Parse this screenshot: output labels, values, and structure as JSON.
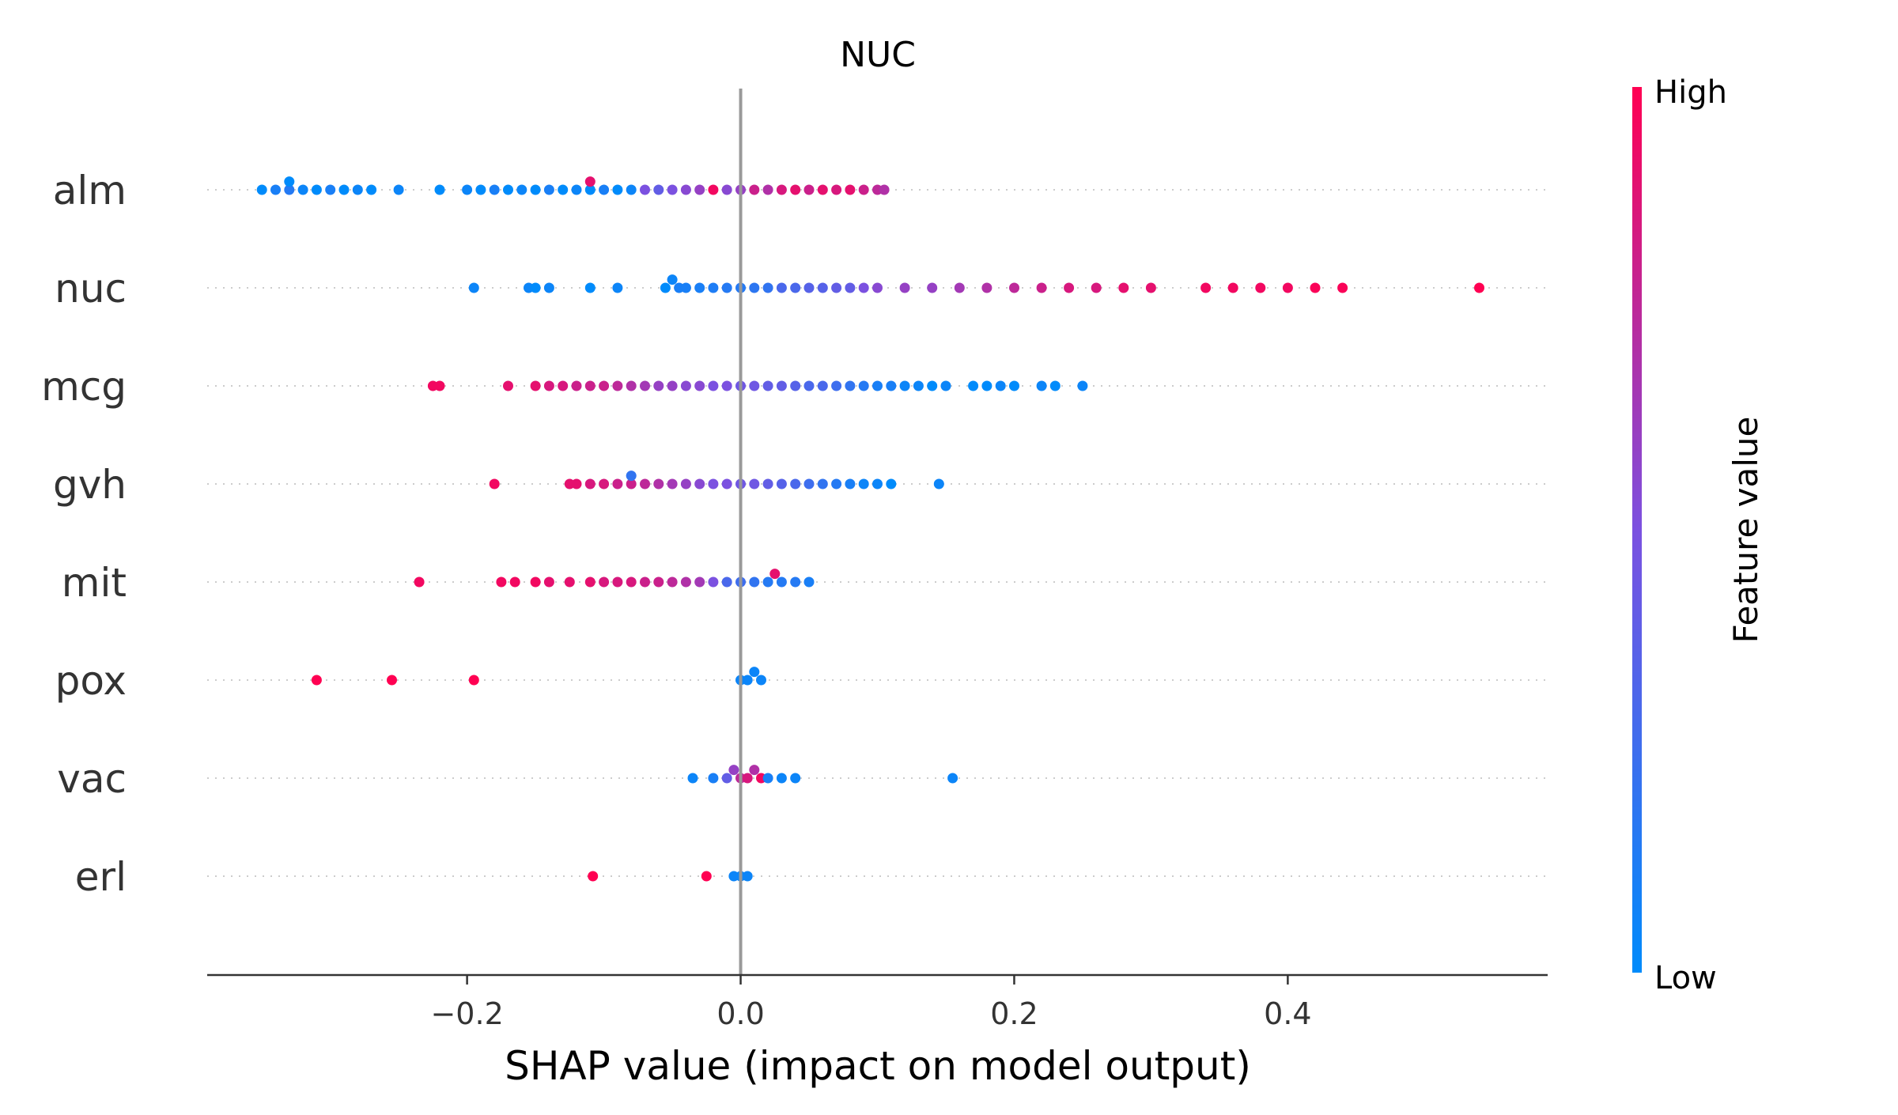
{
  "chart_data": {
    "type": "scatter",
    "subtype": "shap-beeswarm",
    "title": "NUC",
    "xlabel": "SHAP value (impact on model output)",
    "xlim": [
      -0.39,
      0.59
    ],
    "xticks": [
      -0.2,
      0.0,
      0.2,
      0.4
    ],
    "xtick_labels": [
      "−0.2",
      "0.0",
      "0.2",
      "0.4"
    ],
    "colorbar": {
      "title": "Feature value",
      "high_label": "High",
      "low_label": "Low",
      "low_color": "#008bfb",
      "high_color": "#ff0052"
    },
    "zero_line_color": "#999999",
    "grid": "dotted-horizontal",
    "features": [
      {
        "name": "alm",
        "summary": "wide tail of low values (blue) to -0.35; dense cluster of high values (red) at 0.03 to 0.11",
        "points": [
          [
            -0.35,
            0.0
          ],
          [
            -0.34,
            0.1
          ],
          [
            -0.33,
            0.15
          ],
          [
            -0.33,
            0.0
          ],
          [
            -0.32,
            0.05
          ],
          [
            -0.31,
            0.0
          ],
          [
            -0.3,
            0.1
          ],
          [
            -0.29,
            0.0
          ],
          [
            -0.28,
            0.05
          ],
          [
            -0.27,
            0.0
          ],
          [
            -0.25,
            0.05
          ],
          [
            -0.22,
            0.0
          ],
          [
            -0.2,
            0.05
          ],
          [
            -0.19,
            0.0
          ],
          [
            -0.18,
            0.1
          ],
          [
            -0.17,
            0.0
          ],
          [
            -0.16,
            0.05
          ],
          [
            -0.15,
            0.0
          ],
          [
            -0.14,
            0.1
          ],
          [
            -0.13,
            0.0
          ],
          [
            -0.12,
            0.05
          ],
          [
            -0.11,
            0.0
          ],
          [
            -0.1,
            0.1
          ],
          [
            -0.09,
            0.0
          ],
          [
            -0.08,
            0.05
          ],
          [
            -0.07,
            0.5
          ],
          [
            -0.06,
            0.4
          ],
          [
            -0.05,
            0.5
          ],
          [
            -0.04,
            0.55
          ],
          [
            -0.03,
            0.6
          ],
          [
            -0.11,
            0.9
          ],
          [
            -0.02,
            0.95
          ],
          [
            -0.01,
            0.55
          ],
          [
            0.0,
            0.6
          ],
          [
            0.01,
            0.8
          ],
          [
            0.02,
            0.7
          ],
          [
            0.03,
            0.85
          ],
          [
            0.04,
            0.9
          ],
          [
            0.05,
            0.8
          ],
          [
            0.06,
            0.9
          ],
          [
            0.07,
            0.85
          ],
          [
            0.08,
            0.9
          ],
          [
            0.09,
            0.8
          ],
          [
            0.1,
            0.75
          ],
          [
            0.105,
            0.7
          ]
        ]
      },
      {
        "name": "nuc",
        "summary": "compact blue cluster at -0.05 to 0.0; long red tail to 0.44 with an outlier at 0.54",
        "points": [
          [
            -0.195,
            0.05
          ],
          [
            -0.155,
            0.05
          ],
          [
            -0.15,
            0.0
          ],
          [
            -0.14,
            0.05
          ],
          [
            -0.11,
            0.0
          ],
          [
            -0.09,
            0.05
          ],
          [
            -0.055,
            0.0
          ],
          [
            -0.05,
            0.05
          ],
          [
            -0.045,
            0.1
          ],
          [
            -0.04,
            0.1
          ],
          [
            -0.03,
            0.1
          ],
          [
            -0.02,
            0.12
          ],
          [
            -0.01,
            0.15
          ],
          [
            0.0,
            0.15
          ],
          [
            0.01,
            0.18
          ],
          [
            0.02,
            0.2
          ],
          [
            0.03,
            0.3
          ],
          [
            0.04,
            0.3
          ],
          [
            0.05,
            0.35
          ],
          [
            0.06,
            0.35
          ],
          [
            0.07,
            0.4
          ],
          [
            0.08,
            0.4
          ],
          [
            0.09,
            0.5
          ],
          [
            0.1,
            0.55
          ],
          [
            0.12,
            0.6
          ],
          [
            0.14,
            0.6
          ],
          [
            0.16,
            0.65
          ],
          [
            0.18,
            0.7
          ],
          [
            0.2,
            0.75
          ],
          [
            0.22,
            0.8
          ],
          [
            0.24,
            0.85
          ],
          [
            0.26,
            0.85
          ],
          [
            0.28,
            0.9
          ],
          [
            0.3,
            0.9
          ],
          [
            0.34,
            0.95
          ],
          [
            0.36,
            0.95
          ],
          [
            0.38,
            0.95
          ],
          [
            0.4,
            0.95
          ],
          [
            0.42,
            0.98
          ],
          [
            0.44,
            0.98
          ],
          [
            0.54,
            1.0
          ]
        ]
      },
      {
        "name": "mcg",
        "summary": "high values (red) on the negative side to -0.22; low values (blue) on the positive side to 0.25",
        "points": [
          [
            -0.225,
            0.95
          ],
          [
            -0.22,
            0.95
          ],
          [
            -0.17,
            0.9
          ],
          [
            -0.15,
            0.9
          ],
          [
            -0.14,
            0.85
          ],
          [
            -0.13,
            0.85
          ],
          [
            -0.12,
            0.8
          ],
          [
            -0.11,
            0.8
          ],
          [
            -0.1,
            0.8
          ],
          [
            -0.09,
            0.75
          ],
          [
            -0.08,
            0.7
          ],
          [
            -0.07,
            0.65
          ],
          [
            -0.06,
            0.6
          ],
          [
            -0.05,
            0.6
          ],
          [
            -0.04,
            0.55
          ],
          [
            -0.03,
            0.55
          ],
          [
            -0.02,
            0.5
          ],
          [
            -0.01,
            0.5
          ],
          [
            0.0,
            0.45
          ],
          [
            0.01,
            0.45
          ],
          [
            0.02,
            0.4
          ],
          [
            0.03,
            0.4
          ],
          [
            0.04,
            0.35
          ],
          [
            0.05,
            0.3
          ],
          [
            0.06,
            0.3
          ],
          [
            0.07,
            0.25
          ],
          [
            0.08,
            0.2
          ],
          [
            0.09,
            0.15
          ],
          [
            0.1,
            0.1
          ],
          [
            0.11,
            0.1
          ],
          [
            0.12,
            0.05
          ],
          [
            0.13,
            0.05
          ],
          [
            0.14,
            0.0
          ],
          [
            0.15,
            0.05
          ],
          [
            0.17,
            0.0
          ],
          [
            0.18,
            0.0
          ],
          [
            0.19,
            0.05
          ],
          [
            0.2,
            0.0
          ],
          [
            0.22,
            0.05
          ],
          [
            0.23,
            0.0
          ],
          [
            0.25,
            0.05
          ]
        ]
      },
      {
        "name": "gvh",
        "summary": "high values (red) on the negative side to -0.18; low values (blue) on the positive side to 0.15",
        "points": [
          [
            -0.18,
            0.95
          ],
          [
            -0.125,
            0.9
          ],
          [
            -0.12,
            0.9
          ],
          [
            -0.11,
            0.85
          ],
          [
            -0.1,
            0.85
          ],
          [
            -0.09,
            0.8
          ],
          [
            -0.08,
            0.8
          ],
          [
            -0.07,
            0.75
          ],
          [
            -0.06,
            0.7
          ],
          [
            -0.05,
            0.65
          ],
          [
            -0.04,
            0.6
          ],
          [
            -0.03,
            0.55
          ],
          [
            -0.02,
            0.5
          ],
          [
            -0.01,
            0.5
          ],
          [
            0.0,
            0.45
          ],
          [
            0.01,
            0.45
          ],
          [
            0.02,
            0.4
          ],
          [
            0.03,
            0.35
          ],
          [
            0.04,
            0.3
          ],
          [
            0.05,
            0.25
          ],
          [
            0.06,
            0.2
          ],
          [
            0.07,
            0.15
          ],
          [
            0.08,
            0.1
          ],
          [
            0.09,
            0.05
          ],
          [
            0.1,
            0.05
          ],
          [
            0.11,
            0.0
          ],
          [
            0.145,
            0.05
          ],
          [
            -0.08,
            0.2
          ]
        ]
      },
      {
        "name": "mit",
        "summary": "high values (red) tail to -0.24; low values (blue) clustered at -0.01 to 0.05",
        "points": [
          [
            -0.235,
            0.95
          ],
          [
            -0.175,
            0.95
          ],
          [
            -0.165,
            0.95
          ],
          [
            -0.15,
            0.95
          ],
          [
            -0.14,
            0.9
          ],
          [
            -0.125,
            0.9
          ],
          [
            -0.11,
            0.9
          ],
          [
            -0.1,
            0.85
          ],
          [
            -0.09,
            0.85
          ],
          [
            -0.08,
            0.85
          ],
          [
            -0.07,
            0.8
          ],
          [
            -0.06,
            0.8
          ],
          [
            -0.05,
            0.75
          ],
          [
            -0.04,
            0.7
          ],
          [
            -0.03,
            0.65
          ],
          [
            -0.02,
            0.5
          ],
          [
            -0.01,
            0.3
          ],
          [
            0.0,
            0.25
          ],
          [
            0.01,
            0.2
          ],
          [
            0.02,
            0.15
          ],
          [
            0.025,
            0.9
          ],
          [
            0.03,
            0.15
          ],
          [
            0.04,
            0.15
          ],
          [
            0.05,
            0.1
          ]
        ]
      },
      {
        "name": "pox",
        "summary": "three high-value (red) outliers at -0.31, -0.26 and -0.20; low values (blue) stacked at 0.0 to 0.015",
        "points": [
          [
            -0.31,
            1.0
          ],
          [
            -0.255,
            1.0
          ],
          [
            -0.195,
            1.0
          ],
          [
            0.0,
            0.05
          ],
          [
            0.005,
            0.05
          ],
          [
            0.01,
            0.05
          ],
          [
            0.015,
            0.05
          ]
        ]
      },
      {
        "name": "vac",
        "summary": "narrow cluster of mid and high values around 0.0; low-value (blue) points to -0.035 and 0.155",
        "points": [
          [
            -0.035,
            0.05
          ],
          [
            -0.02,
            0.1
          ],
          [
            -0.01,
            0.4
          ],
          [
            -0.005,
            0.6
          ],
          [
            0.0,
            0.75
          ],
          [
            0.005,
            0.85
          ],
          [
            0.01,
            0.7
          ],
          [
            0.015,
            0.95
          ],
          [
            0.02,
            0.1
          ],
          [
            0.03,
            0.05
          ],
          [
            0.04,
            0.05
          ],
          [
            0.155,
            0.05
          ]
        ]
      },
      {
        "name": "erl",
        "summary": "two high-value (red) outliers at -0.11 and -0.025; low values (blue) stacked at about 0.0",
        "points": [
          [
            -0.108,
            1.0
          ],
          [
            -0.025,
            1.0
          ],
          [
            -0.005,
            0.05
          ],
          [
            0.0,
            0.05
          ],
          [
            0.005,
            0.05
          ]
        ]
      }
    ]
  }
}
